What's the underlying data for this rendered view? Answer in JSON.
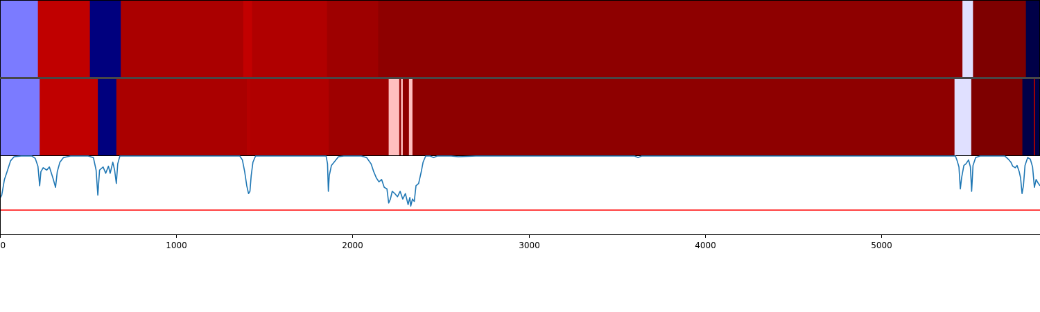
{
  "chart_data": {
    "type": "heatmap",
    "title": "",
    "xlabel": "",
    "xlim": [
      0,
      5900
    ],
    "x_ticks": [
      0,
      1000,
      2000,
      3000,
      4000,
      5000
    ],
    "x_tick_labels": [
      "0",
      "1000",
      "2000",
      "3000",
      "4000",
      "5000"
    ],
    "grid": false,
    "legend": "none",
    "tracks": [
      {
        "segments": [
          {
            "start": 0,
            "end": 215,
            "color": "#7b7bff"
          },
          {
            "start": 215,
            "end": 510,
            "color": "#c00000"
          },
          {
            "start": 510,
            "end": 685,
            "color": "#00007e"
          },
          {
            "start": 685,
            "end": 1380,
            "color": "#aa0000"
          },
          {
            "start": 1380,
            "end": 1430,
            "color": "#c20000"
          },
          {
            "start": 1430,
            "end": 1855,
            "color": "#b00000"
          },
          {
            "start": 1855,
            "end": 2145,
            "color": "#9e0000"
          },
          {
            "start": 2145,
            "end": 5460,
            "color": "#8e0000"
          },
          {
            "start": 5460,
            "end": 5520,
            "color": "#e0e0ff"
          },
          {
            "start": 5520,
            "end": 5820,
            "color": "#7e0000"
          },
          {
            "start": 5820,
            "end": 5900,
            "color": "#000048"
          }
        ]
      },
      {
        "segments": [
          {
            "start": 0,
            "end": 225,
            "color": "#7b7bff"
          },
          {
            "start": 225,
            "end": 555,
            "color": "#c00000"
          },
          {
            "start": 555,
            "end": 660,
            "color": "#00007e"
          },
          {
            "start": 660,
            "end": 1400,
            "color": "#aa0000"
          },
          {
            "start": 1400,
            "end": 1420,
            "color": "#b50000"
          },
          {
            "start": 1420,
            "end": 1865,
            "color": "#b00000"
          },
          {
            "start": 1865,
            "end": 2205,
            "color": "#9e0000"
          },
          {
            "start": 2205,
            "end": 2265,
            "color": "#ffbfbf"
          },
          {
            "start": 2265,
            "end": 2275,
            "color": "#8e0000"
          },
          {
            "start": 2275,
            "end": 2285,
            "color": "#ffbfbf"
          },
          {
            "start": 2285,
            "end": 2320,
            "color": "#8e0000"
          },
          {
            "start": 2320,
            "end": 2340,
            "color": "#ffbfbf"
          },
          {
            "start": 2340,
            "end": 5415,
            "color": "#8e0000"
          },
          {
            "start": 5415,
            "end": 5510,
            "color": "#e0e0ff"
          },
          {
            "start": 5510,
            "end": 5800,
            "color": "#7e0000"
          },
          {
            "start": 5800,
            "end": 5865,
            "color": "#000048"
          },
          {
            "start": 5865,
            "end": 5872,
            "color": "#b00000"
          },
          {
            "start": 5872,
            "end": 5900,
            "color": "#000048"
          }
        ]
      }
    ],
    "line_panel": {
      "ylim": [
        0,
        1
      ],
      "line_color": "#1f77b4",
      "threshold": {
        "value": 0.31,
        "color": "#ff0000"
      },
      "points": [
        [
          0,
          0.46
        ],
        [
          10,
          0.5
        ],
        [
          25,
          0.7
        ],
        [
          40,
          0.8
        ],
        [
          60,
          0.94
        ],
        [
          80,
          0.99
        ],
        [
          120,
          1.0
        ],
        [
          180,
          1.0
        ],
        [
          200,
          0.97
        ],
        [
          215,
          0.87
        ],
        [
          225,
          0.62
        ],
        [
          232,
          0.8
        ],
        [
          245,
          0.85
        ],
        [
          265,
          0.82
        ],
        [
          280,
          0.86
        ],
        [
          300,
          0.72
        ],
        [
          315,
          0.6
        ],
        [
          325,
          0.8
        ],
        [
          340,
          0.92
        ],
        [
          360,
          0.98
        ],
        [
          400,
          1.0
        ],
        [
          500,
          1.0
        ],
        [
          530,
          0.98
        ],
        [
          545,
          0.82
        ],
        [
          555,
          0.5
        ],
        [
          565,
          0.82
        ],
        [
          585,
          0.86
        ],
        [
          600,
          0.78
        ],
        [
          615,
          0.87
        ],
        [
          625,
          0.78
        ],
        [
          640,
          0.92
        ],
        [
          650,
          0.82
        ],
        [
          660,
          0.65
        ],
        [
          668,
          0.9
        ],
        [
          680,
          1.0
        ],
        [
          1000,
          1.0
        ],
        [
          1360,
          1.0
        ],
        [
          1375,
          0.95
        ],
        [
          1388,
          0.8
        ],
        [
          1400,
          0.62
        ],
        [
          1410,
          0.52
        ],
        [
          1418,
          0.55
        ],
        [
          1425,
          0.75
        ],
        [
          1435,
          0.92
        ],
        [
          1450,
          1.0
        ],
        [
          1850,
          1.0
        ],
        [
          1858,
          0.9
        ],
        [
          1863,
          0.55
        ],
        [
          1868,
          0.75
        ],
        [
          1880,
          0.88
        ],
        [
          1895,
          0.92
        ],
        [
          1920,
          0.99
        ],
        [
          1950,
          1.0
        ],
        [
          2050,
          1.0
        ],
        [
          2080,
          0.98
        ],
        [
          2105,
          0.9
        ],
        [
          2120,
          0.8
        ],
        [
          2135,
          0.72
        ],
        [
          2150,
          0.67
        ],
        [
          2165,
          0.7
        ],
        [
          2180,
          0.6
        ],
        [
          2195,
          0.58
        ],
        [
          2205,
          0.4
        ],
        [
          2215,
          0.45
        ],
        [
          2225,
          0.55
        ],
        [
          2240,
          0.52
        ],
        [
          2255,
          0.48
        ],
        [
          2270,
          0.55
        ],
        [
          2285,
          0.45
        ],
        [
          2300,
          0.52
        ],
        [
          2315,
          0.38
        ],
        [
          2325,
          0.47
        ],
        [
          2330,
          0.36
        ],
        [
          2340,
          0.45
        ],
        [
          2350,
          0.42
        ],
        [
          2360,
          0.62
        ],
        [
          2375,
          0.65
        ],
        [
          2390,
          0.8
        ],
        [
          2400,
          0.92
        ],
        [
          2415,
          1.0
        ],
        [
          2440,
          1.0
        ],
        [
          2460,
          0.98
        ],
        [
          2480,
          1.0
        ],
        [
          2560,
          1.0
        ],
        [
          2600,
          0.99
        ],
        [
          2700,
          1.0
        ],
        [
          3000,
          1.0
        ],
        [
          3600,
          1.0
        ],
        [
          3620,
          0.98
        ],
        [
          3640,
          1.0
        ],
        [
          4000,
          1.0
        ],
        [
          5000,
          1.0
        ],
        [
          5420,
          1.0
        ],
        [
          5430,
          0.94
        ],
        [
          5440,
          0.86
        ],
        [
          5448,
          0.58
        ],
        [
          5455,
          0.72
        ],
        [
          5468,
          0.88
        ],
        [
          5480,
          0.9
        ],
        [
          5495,
          0.95
        ],
        [
          5505,
          0.86
        ],
        [
          5512,
          0.55
        ],
        [
          5520,
          0.88
        ],
        [
          5535,
          0.98
        ],
        [
          5560,
          1.0
        ],
        [
          5700,
          1.0
        ],
        [
          5720,
          0.96
        ],
        [
          5735,
          0.92
        ],
        [
          5745,
          0.87
        ],
        [
          5760,
          0.85
        ],
        [
          5770,
          0.88
        ],
        [
          5782,
          0.8
        ],
        [
          5790,
          0.72
        ],
        [
          5798,
          0.52
        ],
        [
          5806,
          0.62
        ],
        [
          5815,
          0.88
        ],
        [
          5830,
          0.98
        ],
        [
          5845,
          0.96
        ],
        [
          5858,
          0.86
        ],
        [
          5868,
          0.6
        ],
        [
          5878,
          0.7
        ],
        [
          5888,
          0.66
        ],
        [
          5900,
          0.62
        ]
      ]
    }
  }
}
